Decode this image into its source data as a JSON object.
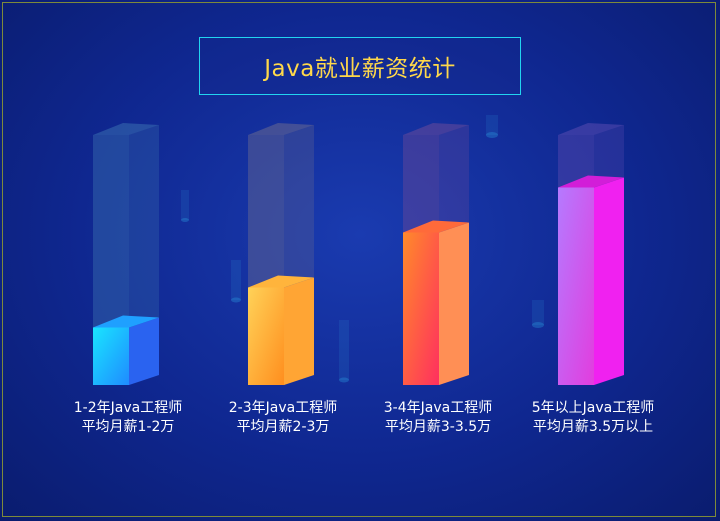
{
  "title": "Java就业薪资统计",
  "chart_data": {
    "type": "bar",
    "categories": [
      [
        "1-2年Java工程师",
        "平均月薪1-2万"
      ],
      [
        "2-3年Java工程师",
        "平均月薪2-3万"
      ],
      [
        "3-4年Java工程师",
        "平均月薪3-3.5万"
      ],
      [
        "5年以上Java工程师",
        "平均月薪3.5万以上"
      ]
    ],
    "values": [
      0.23,
      0.39,
      0.61,
      0.79
    ],
    "value_unit": "fraction of column height",
    "colors": [
      {
        "front": [
          "#19e5ff",
          "#1f8bff"
        ],
        "side": "#2a63f0",
        "top": "#1fa0ff",
        "ghost": "#3a6fb0"
      },
      {
        "front": [
          "#ffd258",
          "#ff8e1e"
        ],
        "side": "#ffa534",
        "top": "#ffb43c",
        "ghost": "#6a6a90"
      },
      {
        "front": [
          "#ff8a2a",
          "#ff2f5f"
        ],
        "side": "#ff8f55",
        "top": "#ff6a3a",
        "ghost": "#6a4a9a"
      },
      {
        "front": [
          "#b57aff",
          "#e23dde"
        ],
        "side": "#f021f0",
        "top": "#d21ed8",
        "ghost": "#5a4ab0"
      }
    ]
  }
}
